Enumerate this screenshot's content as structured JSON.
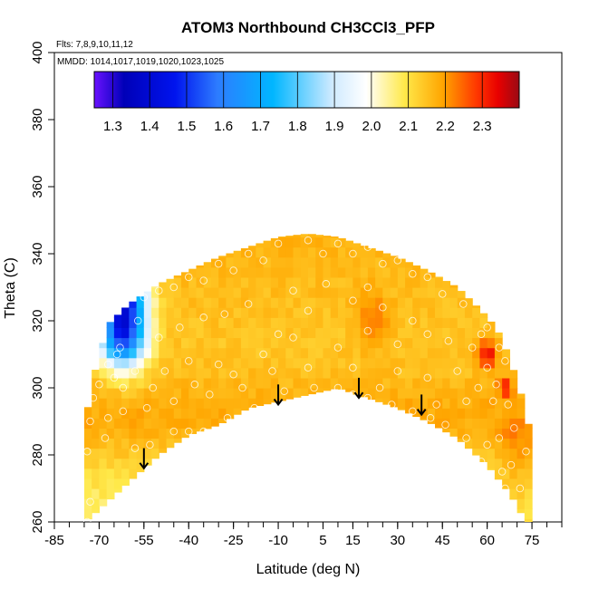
{
  "chart_data": {
    "type": "heatmap",
    "title": "ATOM3 Northbound CH3CCl3_PFP",
    "flights_note": "Flts: 7,8,9,10,11,12",
    "dates_note": "MMDD: 1014,1017,1019,1020,1023,1025",
    "xlabel": "Latitude (deg N)",
    "ylabel": "Theta (C)",
    "xlim": [
      -85,
      85
    ],
    "ylim": [
      260,
      400
    ],
    "x_ticks": [
      -85,
      -70,
      -55,
      -40,
      -25,
      -10,
      5,
      15,
      30,
      45,
      60,
      75
    ],
    "x_tick_labels": [
      "-85",
      "-70",
      "-55",
      "-40",
      "-25",
      "-10",
      "5",
      "15",
      "30",
      "45",
      "60",
      "75"
    ],
    "y_ticks": [
      260,
      280,
      300,
      320,
      340,
      360,
      380,
      400
    ],
    "y_tick_labels": [
      "260",
      "280",
      "300",
      "320",
      "340",
      "360",
      "380",
      "400"
    ],
    "colorbar": {
      "range": [
        1.25,
        2.4
      ],
      "ticks": [
        1.3,
        1.4,
        1.5,
        1.6,
        1.7,
        1.8,
        1.9,
        2.0,
        2.1,
        2.2,
        2.3
      ],
      "tick_labels": [
        "1.3",
        "1.4",
        "1.5",
        "1.6",
        "1.7",
        "1.8",
        "1.9",
        "2.0",
        "2.1",
        "2.2",
        "2.3"
      ]
    },
    "upper_boundary": [
      [
        -75,
        288
      ],
      [
        -72,
        303
      ],
      [
        -67,
        319
      ],
      [
        -60,
        325
      ],
      [
        -50,
        331
      ],
      [
        -40,
        335
      ],
      [
        -30,
        339
      ],
      [
        -20,
        342
      ],
      [
        -10,
        345
      ],
      [
        0,
        346
      ],
      [
        10,
        345
      ],
      [
        20,
        342
      ],
      [
        30,
        339
      ],
      [
        40,
        335
      ],
      [
        50,
        330
      ],
      [
        58,
        323
      ],
      [
        63,
        318
      ],
      [
        67,
        310
      ],
      [
        70,
        302
      ],
      [
        73,
        293
      ],
      [
        75,
        283
      ]
    ],
    "lower_boundary": [
      [
        -75,
        260
      ],
      [
        -71,
        263
      ],
      [
        -60,
        272
      ],
      [
        -50,
        280
      ],
      [
        -40,
        286
      ],
      [
        -30,
        289
      ],
      [
        -20,
        294
      ],
      [
        -10,
        296
      ],
      [
        0,
        298
      ],
      [
        10,
        300
      ],
      [
        20,
        297
      ],
      [
        30,
        294
      ],
      [
        40,
        290
      ],
      [
        50,
        285
      ],
      [
        60,
        277
      ],
      [
        68,
        268
      ],
      [
        73,
        260
      ]
    ],
    "samples": [
      [
        -74,
        260
      ],
      [
        -73,
        266
      ],
      [
        -74,
        281
      ],
      [
        -73,
        290
      ],
      [
        -72,
        297
      ],
      [
        -67,
        291
      ],
      [
        -62,
        300
      ],
      [
        -58,
        282
      ],
      [
        -61,
        269
      ],
      [
        -53,
        283
      ],
      [
        -45,
        287
      ],
      [
        -40,
        287
      ],
      [
        -35,
        287
      ],
      [
        -27,
        291
      ],
      [
        -18,
        294
      ],
      [
        -8,
        299
      ],
      [
        2,
        300
      ],
      [
        10,
        300
      ],
      [
        15,
        298
      ],
      [
        20,
        297
      ],
      [
        28,
        295
      ],
      [
        35,
        293
      ],
      [
        41,
        291
      ],
      [
        46,
        289
      ],
      [
        53,
        285
      ],
      [
        60,
        283
      ],
      [
        65,
        275
      ],
      [
        66,
        270
      ],
      [
        -63,
        312
      ],
      [
        -57,
        320
      ],
      [
        -50,
        315
      ],
      [
        -43,
        318
      ],
      [
        -35,
        321
      ],
      [
        -28,
        322
      ],
      [
        -20,
        325
      ],
      [
        -10,
        316
      ],
      [
        0,
        323
      ],
      [
        -5,
        329
      ],
      [
        6,
        331
      ],
      [
        15,
        326
      ],
      [
        20,
        330
      ],
      [
        25,
        324
      ],
      [
        35,
        320
      ],
      [
        40,
        316
      ],
      [
        47,
        314
      ],
      [
        55,
        312
      ],
      [
        60,
        306
      ],
      [
        63,
        301
      ],
      [
        67,
        295
      ],
      [
        -48,
        305
      ],
      [
        -40,
        308
      ],
      [
        -30,
        307
      ],
      [
        -15,
        310
      ],
      [
        -5,
        315
      ],
      [
        10,
        312
      ],
      [
        20,
        317
      ],
      [
        30,
        313
      ],
      [
        50,
        305
      ],
      [
        57,
        300
      ],
      [
        62,
        296
      ],
      [
        69,
        288
      ],
      [
        -58,
        305
      ],
      [
        -65,
        303
      ],
      [
        0,
        344
      ],
      [
        -10,
        343
      ],
      [
        10,
        343
      ],
      [
        20,
        342
      ],
      [
        30,
        338
      ],
      [
        40,
        333
      ],
      [
        -40,
        333
      ],
      [
        -30,
        337
      ],
      [
        -50,
        329
      ],
      [
        -20,
        340
      ],
      [
        60,
        318
      ],
      [
        66,
        308
      ],
      [
        -70,
        301
      ],
      [
        -67,
        307
      ],
      [
        73,
        281
      ],
      [
        58,
        278
      ],
      [
        47,
        282
      ],
      [
        43,
        295
      ],
      [
        24,
        300
      ],
      [
        5,
        297
      ],
      [
        -5,
        295
      ],
      [
        -22,
        300
      ],
      [
        -33,
        298
      ],
      [
        -45,
        296
      ],
      [
        -54,
        294
      ],
      [
        -62,
        293
      ],
      [
        -68,
        285
      ],
      [
        68,
        277
      ],
      [
        71,
        270
      ],
      [
        64,
        285
      ],
      [
        53,
        296
      ],
      [
        40,
        303
      ],
      [
        30,
        305
      ],
      [
        15,
        306
      ],
      [
        0,
        306
      ],
      [
        -12,
        305
      ],
      [
        -25,
        304
      ],
      [
        -38,
        301
      ],
      [
        -52,
        300
      ],
      [
        -64,
        310
      ],
      [
        -55,
        327
      ],
      [
        -45,
        330
      ],
      [
        -35,
        332
      ],
      [
        -25,
        335
      ],
      [
        -15,
        338
      ],
      [
        5,
        340
      ],
      [
        15,
        340
      ],
      [
        25,
        337
      ],
      [
        35,
        334
      ],
      [
        45,
        328
      ],
      [
        52,
        325
      ],
      [
        58,
        316
      ],
      [
        64,
        312
      ]
    ],
    "arrows": [
      [
        -55,
        282
      ],
      [
        -10,
        301
      ],
      [
        17,
        303
      ],
      [
        38,
        298
      ]
    ]
  }
}
